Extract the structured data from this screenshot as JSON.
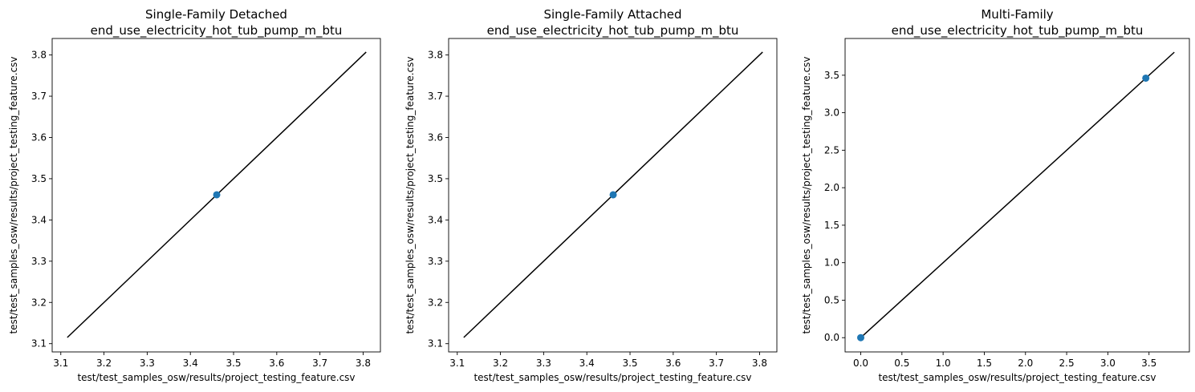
{
  "chart_data": [
    {
      "type": "scatter",
      "title": "Single-Family Detached\nend_use_electricity_hot_tub_pump_m_btu",
      "xlabel": "test/test_samples_osw/results/project_testing_feature.csv",
      "ylabel": "test/test_samples_osw/results/project_testing_feature.csv",
      "xlim": [
        3.08,
        3.84
      ],
      "ylim": [
        3.08,
        3.84
      ],
      "xticks": [
        3.1,
        3.2,
        3.3,
        3.4,
        3.5,
        3.6,
        3.7,
        3.8
      ],
      "yticks": [
        3.1,
        3.2,
        3.3,
        3.4,
        3.5,
        3.6,
        3.7,
        3.8
      ],
      "tick_decimals": 1,
      "points": [
        {
          "x": 3.461,
          "y": 3.461
        }
      ],
      "reference_line": [
        [
          3.115,
          3.115
        ],
        [
          3.807,
          3.807
        ]
      ],
      "grid": false,
      "point_color": "#1f77b4",
      "line_color": "#000000"
    },
    {
      "type": "scatter",
      "title": "Single-Family Attached\nend_use_electricity_hot_tub_pump_m_btu",
      "xlabel": "test/test_samples_osw/results/project_testing_feature.csv",
      "ylabel": "test/test_samples_osw/results/project_testing_feature.csv",
      "xlim": [
        3.08,
        3.84
      ],
      "ylim": [
        3.08,
        3.84
      ],
      "xticks": [
        3.1,
        3.2,
        3.3,
        3.4,
        3.5,
        3.6,
        3.7,
        3.8
      ],
      "yticks": [
        3.1,
        3.2,
        3.3,
        3.4,
        3.5,
        3.6,
        3.7,
        3.8
      ],
      "tick_decimals": 1,
      "points": [
        {
          "x": 3.461,
          "y": 3.461
        }
      ],
      "reference_line": [
        [
          3.115,
          3.115
        ],
        [
          3.807,
          3.807
        ]
      ],
      "grid": false,
      "point_color": "#1f77b4",
      "line_color": "#000000"
    },
    {
      "type": "scatter",
      "title": "Multi-Family\nend_use_electricity_hot_tub_pump_m_btu",
      "xlabel": "test/test_samples_osw/results/project_testing_feature.csv",
      "ylabel": "test/test_samples_osw/results/project_testing_feature.csv",
      "xlim": [
        -0.19,
        3.99
      ],
      "ylim": [
        -0.19,
        3.99
      ],
      "xticks": [
        0.0,
        0.5,
        1.0,
        1.5,
        2.0,
        2.5,
        3.0,
        3.5
      ],
      "yticks": [
        0.0,
        0.5,
        1.0,
        1.5,
        2.0,
        2.5,
        3.0,
        3.5
      ],
      "tick_decimals": 1,
      "points": [
        {
          "x": 0.0,
          "y": 0.0
        },
        {
          "x": 3.461,
          "y": 3.461
        }
      ],
      "reference_line": [
        [
          0.0,
          0.0
        ],
        [
          3.807,
          3.807
        ]
      ],
      "grid": false,
      "point_color": "#1f77b4",
      "line_color": "#000000"
    }
  ]
}
